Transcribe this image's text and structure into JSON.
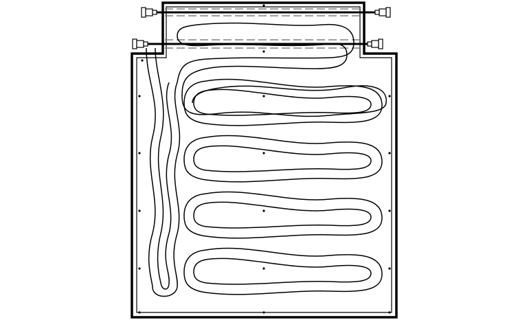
{
  "diagram": {
    "kind": "serpentine-tube-layout",
    "colors": {
      "background": "#ffffff",
      "stroke": "#000000",
      "dash": "#666666",
      "fitting_fill": "#ffffff"
    },
    "mounting_holes": 18,
    "tube_loops": 4,
    "manifold_pipes": 2,
    "icons": {
      "fitting": "pipe-fitting-icon",
      "hole": "mounting-hole-icon"
    }
  }
}
